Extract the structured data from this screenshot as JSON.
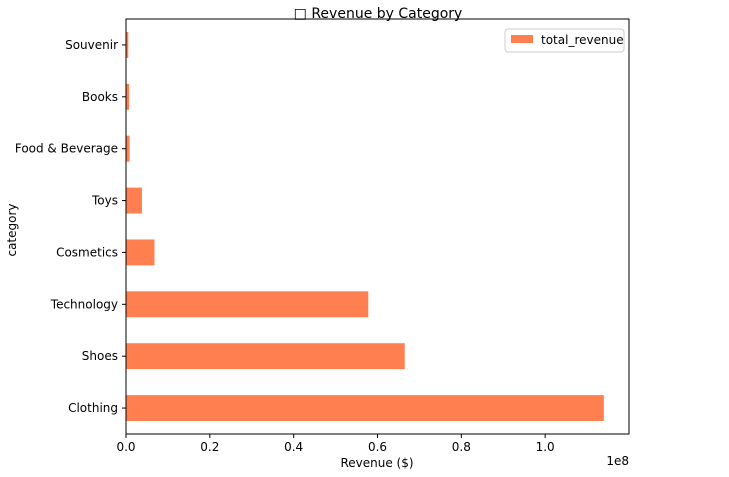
{
  "chart_data": {
    "type": "bar",
    "orientation": "horizontal",
    "title": "□ Revenue by Category",
    "xlabel": "Revenue ($)",
    "ylabel": "category",
    "x_offset_label": "1e8",
    "xlim": [
      0,
      1.2
    ],
    "xticks": [
      0.0,
      0.2,
      0.4,
      0.6,
      0.8,
      1.0
    ],
    "xtick_labels": [
      "0.0",
      "0.2",
      "0.4",
      "0.6",
      "0.8",
      "1.0"
    ],
    "categories": [
      "Clothing",
      "Shoes",
      "Technology",
      "Cosmetics",
      "Toys",
      "Food & Beverage",
      "Books",
      "Souvenir"
    ],
    "series": [
      {
        "name": "total_revenue",
        "color": "#FF7F50",
        "values": [
          1.14,
          0.665,
          0.578,
          0.068,
          0.038,
          0.0085,
          0.0075,
          0.0055
        ]
      }
    ],
    "value_scale": 100000000,
    "legend_position": "top-right",
    "grid": false
  }
}
